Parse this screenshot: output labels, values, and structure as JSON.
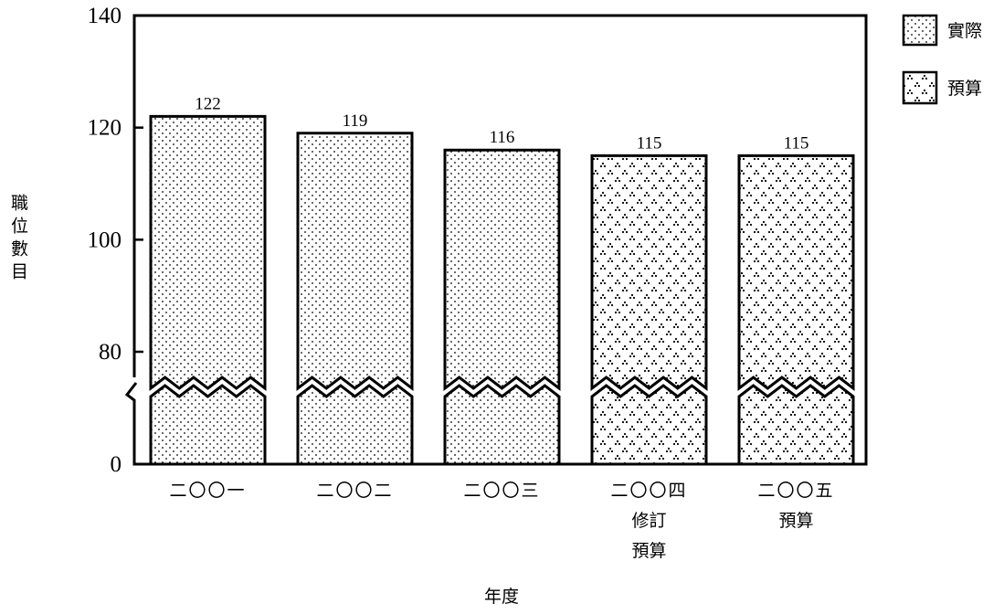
{
  "chart_data": {
    "type": "bar",
    "title": "",
    "xlabel": "年度",
    "ylabel": "職位數目",
    "ylim": [
      0,
      140
    ],
    "axis_break": {
      "from": 0,
      "to": 80
    },
    "yticks": [
      "0",
      "80",
      "100",
      "120",
      "140"
    ],
    "categories": [
      [
        "二〇〇一"
      ],
      [
        "二〇〇二"
      ],
      [
        "二〇〇三"
      ],
      [
        "二〇〇四",
        "修訂",
        "預算"
      ],
      [
        "二〇〇五",
        "預算"
      ]
    ],
    "values": [
      122,
      119,
      116,
      115,
      115
    ],
    "value_labels": [
      "122",
      "119",
      "116",
      "115",
      "115"
    ],
    "bar_kind": [
      "actual",
      "actual",
      "actual",
      "budget",
      "budget"
    ],
    "legend": {
      "placement": "top-right",
      "items": [
        {
          "key": "actual",
          "label": "實際"
        },
        {
          "key": "budget",
          "label": "預算"
        }
      ]
    },
    "grid": false
  }
}
